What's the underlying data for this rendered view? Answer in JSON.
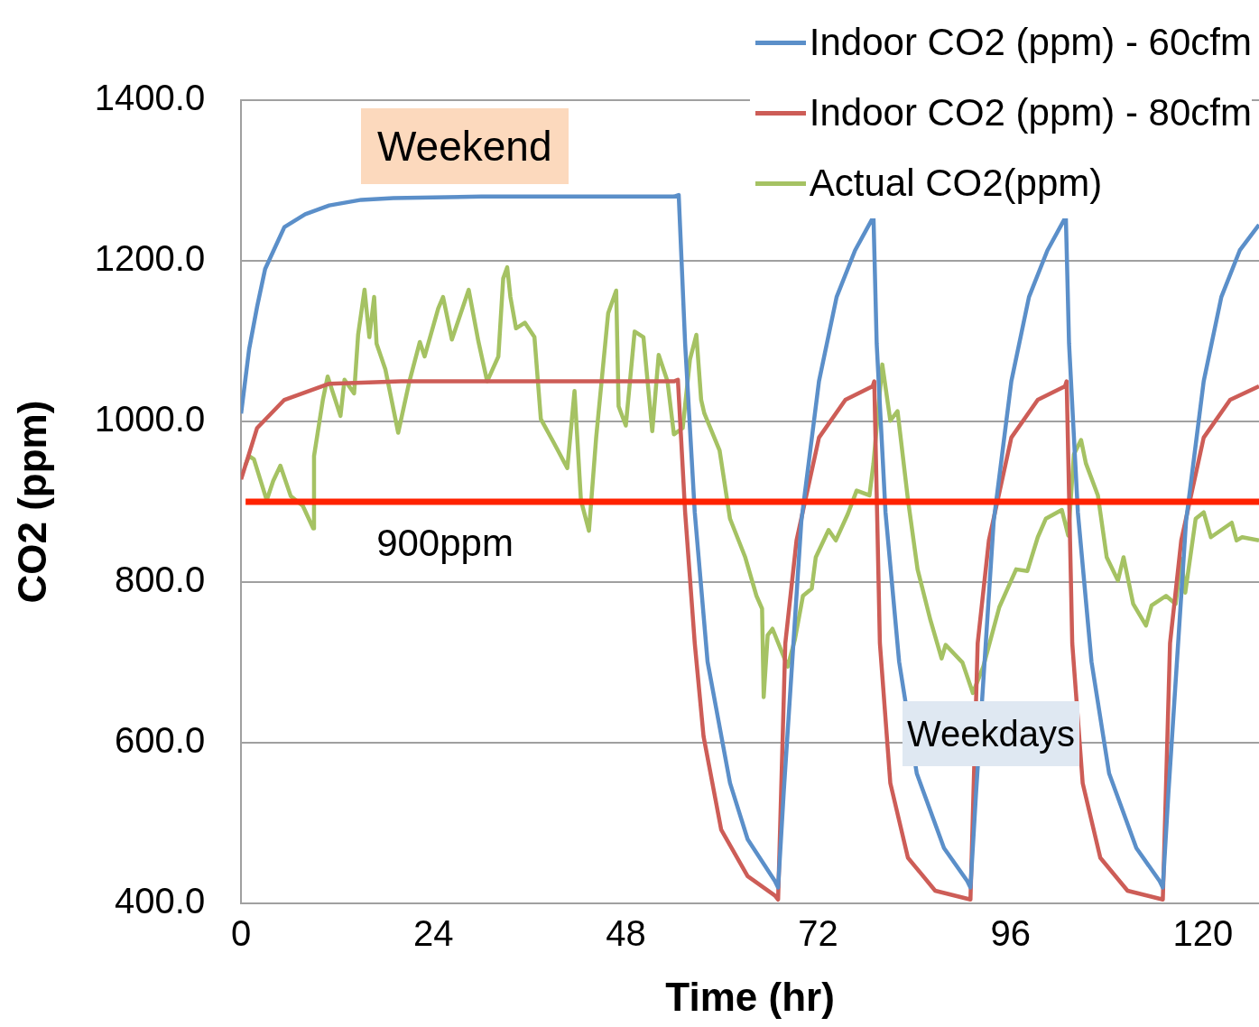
{
  "chart_data": {
    "type": "line",
    "xlabel": "Time (hr)",
    "ylabel": "CO2 (ppm)",
    "xlim": [
      0,
      127
    ],
    "xticks": [
      0,
      24,
      48,
      72,
      96,
      120
    ],
    "ylim": [
      400,
      1400
    ],
    "yticks": [
      {
        "value": 400,
        "label": "400.0"
      },
      {
        "value": 600,
        "label": "600.0"
      },
      {
        "value": 800,
        "label": "800.0"
      },
      {
        "value": 1000,
        "label": "1000.0"
      },
      {
        "value": 1200,
        "label": "1200.0"
      },
      {
        "value": 1400,
        "label": "1400.0"
      }
    ],
    "grid": "y",
    "legend": "top right",
    "marker": "none",
    "line_style": "solid",
    "annotations": [
      "Weekend",
      "Weekdays"
    ],
    "ref_lines": [
      {
        "axis": "y",
        "value": 900,
        "label": "900ppm",
        "color": "#ff2200"
      }
    ],
    "series": [
      {
        "name": "Indoor CO2 (ppm) - 60cfm",
        "color": "#5b8fc9",
        "x": [
          0,
          1,
          2,
          3,
          5.4,
          8,
          11,
          15,
          19,
          30,
          45,
          54,
          54.6,
          55.4,
          56.6,
          58.2,
          61,
          63.2,
          66.6,
          67,
          67.7,
          69.9,
          72.1,
          74.3,
          76.6,
          78.9,
          79.3,
          80.4,
          82.1,
          84.3,
          87.7,
          90.6,
          91,
          91.7,
          93.9,
          96.1,
          98.3,
          100.6,
          102.9,
          103.3,
          104.4,
          106.1,
          108.3,
          111.7,
          114.6,
          115,
          115.7,
          117.9,
          120.1,
          122.3,
          124.6,
          127
        ],
        "values": [
          1010,
          1090,
          1143,
          1190,
          1242,
          1258,
          1269,
          1276,
          1278,
          1280,
          1280,
          1280,
          1282,
          1097,
          887,
          701,
          550,
          480,
          428,
          420,
          538,
          876,
          1050,
          1155,
          1213,
          1255,
          1097,
          887,
          701,
          562,
          469,
          428,
          420,
          538,
          876,
          1050,
          1155,
          1213,
          1255,
          1097,
          887,
          701,
          562,
          469,
          428,
          420,
          538,
          876,
          1050,
          1155,
          1213,
          1245
        ]
      },
      {
        "name": "Indoor CO2 (ppm) - 80cfm",
        "color": "#cd5d57",
        "x": [
          0,
          2,
          5.4,
          11,
          20,
          54,
          54.5,
          55.4,
          56.6,
          57.7,
          59.9,
          63.2,
          66.6,
          67,
          67.9,
          69.3,
          72.1,
          75.4,
          78.8,
          79,
          79.7,
          81,
          83.2,
          86.6,
          91,
          91.9,
          93.3,
          96.1,
          99.4,
          102.8,
          103,
          103.7,
          105,
          107.2,
          110.6,
          115,
          115.9,
          117.3,
          120.1,
          123.4,
          127
        ],
        "values": [
          928,
          992,
          1027,
          1047,
          1050,
          1050,
          1052,
          887,
          724,
          608,
          492,
          434,
          410,
          405,
          724,
          852,
          980,
          1027,
          1044,
          1050,
          724,
          550,
          457,
          416,
          405,
          724,
          852,
          980,
          1027,
          1044,
          1050,
          724,
          550,
          457,
          416,
          405,
          724,
          852,
          980,
          1027,
          1044
        ]
      },
      {
        "name": "Actual CO2(ppm)",
        "color": "#a5c263",
        "x": [
          0.5,
          1.0,
          1.6,
          3.2,
          4.0,
          4.9,
          6.2,
          7.7,
          9.0,
          9.1,
          10.2,
          10.8,
          12.4,
          12.9,
          14.1,
          14.6,
          15.4,
          16,
          16.6,
          16.9,
          18,
          19.6,
          21,
          22.3,
          22.9,
          24.6,
          25.2,
          26.3,
          28.4,
          29.6,
          30.7,
          32.1,
          32.7,
          33.2,
          33.6,
          34.3,
          35.4,
          36.6,
          37.4,
          39.1,
          40.7,
          41.6,
          42.4,
          43.4,
          44.3,
          45.8,
          46.8,
          47.1,
          48,
          49.1,
          50.2,
          51.3,
          52.1,
          53.2,
          54,
          55.1,
          56,
          56.8,
          57.4,
          57.8,
          59.7,
          61,
          62.9,
          64.3,
          65,
          65.2,
          65.7,
          66.3,
          68.2,
          69.1,
          70.1,
          71.2,
          71.7,
          73.3,
          74.2,
          75.7,
          76.8,
          78.4,
          78.9,
          80,
          81,
          81.9,
          83.2,
          84.4,
          86,
          87.4,
          87.9,
          90,
          91.3,
          92.6,
          94.6,
          96.7,
          98.1,
          99.4,
          100.4,
          102.4,
          103.2,
          103.9,
          104.8,
          105.4,
          106.9,
          108,
          109.4,
          110.1,
          111.3,
          112.9,
          113.6,
          115.4,
          116.6,
          117.3,
          117.8,
          119.1,
          120.1,
          121,
          122.3,
          123.6,
          124.2,
          124.9,
          127
        ],
        "values": [
          945,
          957,
          953,
          902,
          926,
          945,
          907,
          895,
          867,
          957,
          1027,
          1056,
          1007,
          1052,
          1035,
          1108,
          1164,
          1105,
          1155,
          1097,
          1065,
          986,
          1050,
          1099,
          1081,
          1141,
          1155,
          1102,
          1164,
          1100,
          1050,
          1081,
          1178,
          1192,
          1155,
          1116,
          1123,
          1105,
          1003,
          972,
          942,
          1038,
          902,
          864,
          980,
          1135,
          1163,
          1019,
          995,
          1112,
          1105,
          988,
          1083,
          1050,
          984,
          992,
          1077,
          1108,
          1027,
          1010,
          964,
          879,
          831,
          783,
          767,
          657,
          734,
          742,
          695,
          729,
          783,
          792,
          831,
          865,
          852,
          885,
          914,
          908,
          948,
          1071,
          1001,
          1013,
          903,
          816,
          753,
          705,
          722,
          700,
          662,
          695,
          769,
          816,
          814,
          856,
          879,
          890,
          858,
          959,
          977,
          948,
          908,
          831,
          802,
          831,
          773,
          746,
          771,
          783,
          773,
          829,
          787,
          879,
          887,
          856,
          865,
          874,
          852,
          856,
          852
        ]
      }
    ]
  }
}
